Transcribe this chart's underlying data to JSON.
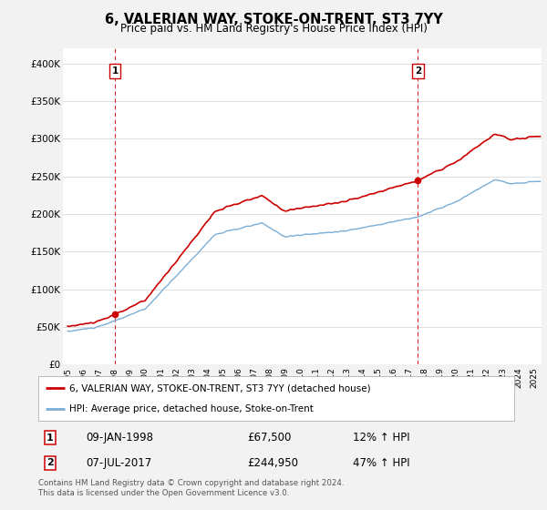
{
  "title": "6, VALERIAN WAY, STOKE-ON-TRENT, ST3 7YY",
  "subtitle": "Price paid vs. HM Land Registry's House Price Index (HPI)",
  "sale1_year": 1998.042,
  "sale1_price": 67500,
  "sale1_display": "09-JAN-1998",
  "sale1_pct": "12% ↑ HPI",
  "sale2_year": 2017.542,
  "sale2_price": 244950,
  "sale2_display": "07-JUL-2017",
  "sale2_pct": "47% ↑ HPI",
  "legend_property": "6, VALERIAN WAY, STOKE-ON-TRENT, ST3 7YY (detached house)",
  "legend_hpi": "HPI: Average price, detached house, Stoke-on-Trent",
  "footer": "Contains HM Land Registry data © Crown copyright and database right 2024.\nThis data is licensed under the Open Government Licence v3.0.",
  "property_color": "#cc0000",
  "hpi_color": "#7aaed6",
  "dashed_line_color": "#cc0000",
  "ylim": [
    0,
    420000
  ],
  "yticks": [
    0,
    50000,
    100000,
    150000,
    200000,
    250000,
    300000,
    350000,
    400000
  ],
  "ytick_labels": [
    "£0",
    "£50K",
    "£100K",
    "£150K",
    "£200K",
    "£250K",
    "£300K",
    "£350K",
    "£400K"
  ],
  "background_color": "#f2f2f2",
  "plot_bg_color": "#ffffff",
  "xtick_years": [
    1995,
    1996,
    1997,
    1998,
    1999,
    2000,
    2001,
    2002,
    2003,
    2004,
    2005,
    2006,
    2007,
    2008,
    2009,
    2010,
    2011,
    2012,
    2013,
    2014,
    2015,
    2016,
    2017,
    2018,
    2019,
    2020,
    2021,
    2022,
    2023,
    2024,
    2025
  ]
}
